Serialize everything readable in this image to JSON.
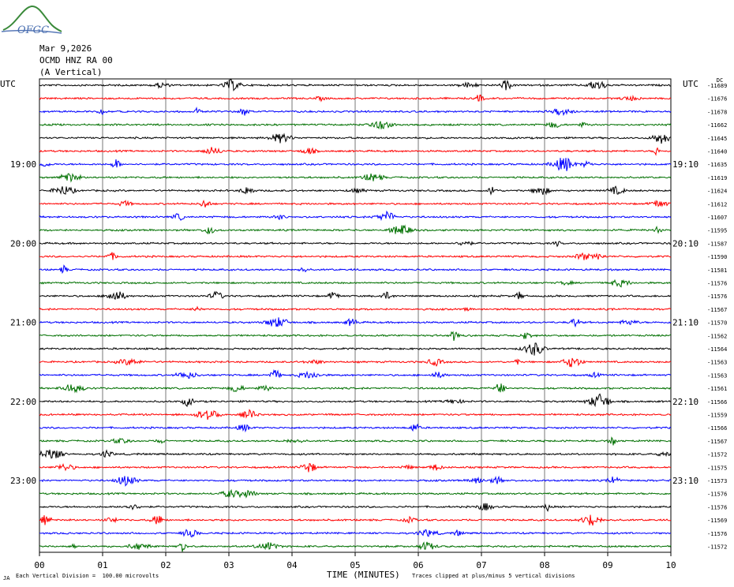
{
  "header": {
    "logo_text": "OFGC",
    "date": "Mar 9,2026",
    "station": "OCMD HNZ RA 00",
    "component": "(A Vertical)",
    "dc_label": "DC"
  },
  "chart_data": {
    "type": "line",
    "title": "",
    "xlabel": "TIME (MINUTES)",
    "ylabel": "",
    "xlim": [
      0,
      10
    ],
    "x_ticks": [
      "00",
      "01",
      "02",
      "03",
      "04",
      "05",
      "06",
      "07",
      "08",
      "09",
      "10"
    ],
    "left_axis_label": "UTC",
    "right_axis_label": "UTC",
    "left_hour_labels": [
      {
        "row": 6,
        "label": "19:00"
      },
      {
        "row": 12,
        "label": "20:00"
      },
      {
        "row": 18,
        "label": "21:00"
      },
      {
        "row": 24,
        "label": "22:00"
      },
      {
        "row": 30,
        "label": "23:00"
      }
    ],
    "right_hour_labels": [
      {
        "row": 6,
        "label": "19:10"
      },
      {
        "row": 12,
        "label": "20:10"
      },
      {
        "row": 18,
        "label": "21:10"
      },
      {
        "row": 24,
        "label": "22:10"
      },
      {
        "row": 30,
        "label": "23:10"
      }
    ],
    "trace_colors": [
      "#000000",
      "#ff0000",
      "#0000ff",
      "#007000"
    ],
    "dc_offsets": [
      "-11689",
      "-11676",
      "-11678",
      "-11662",
      "-11645",
      "-11640",
      "-11635",
      "-11619",
      "-11624",
      "-11612",
      "-11607",
      "-11595",
      "-11587",
      "-11590",
      "-11581",
      "-11576",
      "-11576",
      "-11567",
      "-11570",
      "-11562",
      "-11564",
      "-11563",
      "-11563",
      "-11561",
      "-11566",
      "-11559",
      "-11566",
      "-11567",
      "-11572",
      "-11575",
      "-11573",
      "-11576",
      "-11576",
      "-11569",
      "-11576",
      "-11572"
    ],
    "grid": true,
    "legend": "none"
  },
  "footer": {
    "scale_note": "Each Vertical Division =  100.00 microvolts",
    "clip_note": "Traces clipped at plus/minus 5 vertical divisions",
    "corner_mark": "JA"
  }
}
